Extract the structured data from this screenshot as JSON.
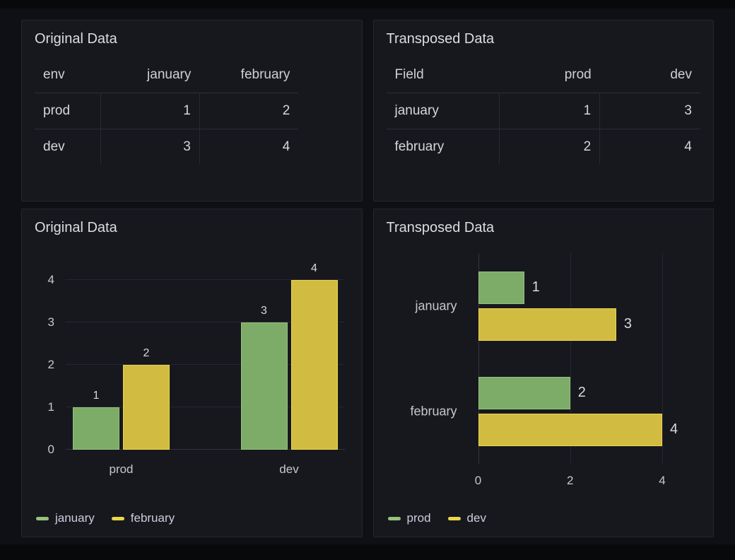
{
  "dashboard": {
    "panels": [
      {
        "title": "Original Data",
        "type": "table",
        "table": {
          "columns": [
            {
              "label": "env",
              "align": "left"
            },
            {
              "label": "january",
              "align": "right"
            },
            {
              "label": "february",
              "align": "right"
            }
          ],
          "rows": [
            [
              "prod",
              "1",
              "2"
            ],
            [
              "dev",
              "3",
              "4"
            ]
          ]
        }
      },
      {
        "title": "Transposed Data",
        "type": "table",
        "table": {
          "columns": [
            {
              "label": "Field",
              "align": "left"
            },
            {
              "label": "prod",
              "align": "right"
            },
            {
              "label": "dev",
              "align": "right"
            }
          ],
          "rows": [
            [
              "january",
              "1",
              "3"
            ],
            [
              "february",
              "2",
              "4"
            ]
          ]
        }
      },
      {
        "title": "Original Data",
        "type": "barchart",
        "chart_data": {
          "type": "bar",
          "orientation": "vertical",
          "categories": [
            "prod",
            "dev"
          ],
          "series": [
            {
              "name": "january",
              "color": "#96c27f",
              "fill": "#7dab68",
              "values": [
                1,
                3
              ]
            },
            {
              "name": "february",
              "color": "#ecd64a",
              "fill": "#d2bb41",
              "values": [
                2,
                4
              ]
            }
          ],
          "ylim": [
            0,
            4
          ],
          "yticks": [
            0,
            1,
            2,
            3,
            4
          ],
          "grid": true,
          "value_labels": true,
          "legend_position": "bottom"
        }
      },
      {
        "title": "Transposed Data",
        "type": "barchart",
        "chart_data": {
          "type": "bar",
          "orientation": "horizontal",
          "categories": [
            "january",
            "february"
          ],
          "series": [
            {
              "name": "prod",
              "color": "#96c27f",
              "fill": "#7dab68",
              "values": [
                1,
                2
              ]
            },
            {
              "name": "dev",
              "color": "#ecd64a",
              "fill": "#d2bb41",
              "values": [
                3,
                4
              ]
            }
          ],
          "xlim": [
            0,
            4
          ],
          "xticks": [
            0,
            2,
            4
          ],
          "grid": true,
          "value_labels": true,
          "legend_position": "bottom"
        }
      }
    ]
  },
  "theme": {
    "page_bg": "#0f1015",
    "panel_bg": "#17181e",
    "panel_border": "#24262d",
    "text": "#ccccdc",
    "green": "#96c27f",
    "yellow": "#ecd64a"
  }
}
